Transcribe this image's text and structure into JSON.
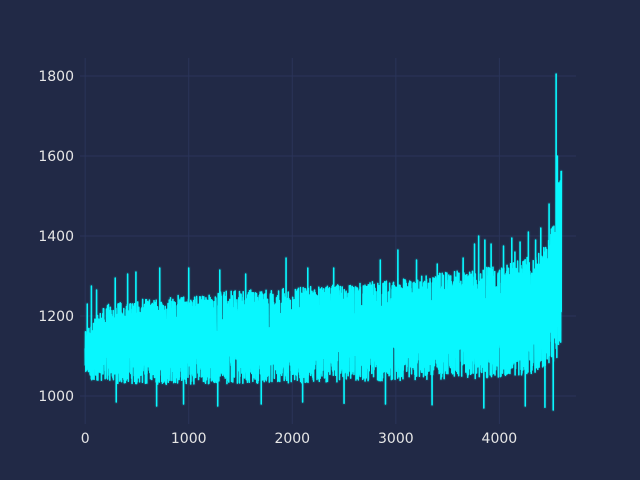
{
  "colors": {
    "background": "#212946",
    "grid": "#2A3459",
    "tick_text": "#E6E6E6",
    "series": "#08F7FE"
  },
  "chart_data": {
    "type": "line",
    "title": "",
    "xlabel": "",
    "ylabel": "",
    "xlim": [
      -50,
      4740
    ],
    "ylim": [
      930,
      1845
    ],
    "xticks": [
      0,
      1000,
      2000,
      3000,
      4000
    ],
    "yticks": [
      1000,
      1200,
      1400,
      1600,
      1800
    ],
    "grid": true,
    "legend": "none",
    "series": [
      {
        "n_points": 4600,
        "low_envelope": [
          [
            0,
            1020
          ],
          [
            300,
            995
          ],
          [
            800,
            990
          ],
          [
            1500,
            990
          ],
          [
            2500,
            992
          ],
          [
            3300,
            995
          ],
          [
            3800,
            995
          ],
          [
            4200,
            1000
          ],
          [
            4450,
            1010
          ],
          [
            4600,
            1030
          ]
        ],
        "high_envelope": [
          [
            0,
            1160
          ],
          [
            200,
            1230
          ],
          [
            800,
            1250
          ],
          [
            1500,
            1265
          ],
          [
            2000,
            1270
          ],
          [
            2500,
            1280
          ],
          [
            3000,
            1290
          ],
          [
            3500,
            1310
          ],
          [
            3800,
            1320
          ],
          [
            4100,
            1330
          ],
          [
            4300,
            1350
          ],
          [
            4450,
            1380
          ],
          [
            4520,
            1440
          ],
          [
            4560,
            1500
          ],
          [
            4600,
            1600
          ]
        ],
        "peaks": [
          [
            20,
            1230
          ],
          [
            60,
            1275
          ],
          [
            110,
            1265
          ],
          [
            290,
            1295
          ],
          [
            410,
            1305
          ],
          [
            490,
            1310
          ],
          [
            720,
            1320
          ],
          [
            1000,
            1320
          ],
          [
            1300,
            1315
          ],
          [
            1550,
            1305
          ],
          [
            1940,
            1345
          ],
          [
            2150,
            1320
          ],
          [
            2400,
            1320
          ],
          [
            2500,
            1330
          ],
          [
            2850,
            1340
          ],
          [
            3020,
            1365
          ],
          [
            3200,
            1340
          ],
          [
            3400,
            1330
          ],
          [
            3650,
            1345
          ],
          [
            3760,
            1380
          ],
          [
            3800,
            1400
          ],
          [
            3860,
            1390
          ],
          [
            3920,
            1380
          ],
          [
            4040,
            1375
          ],
          [
            4120,
            1395
          ],
          [
            4150,
            1360
          ],
          [
            4200,
            1385
          ],
          [
            4280,
            1410
          ],
          [
            4350,
            1390
          ],
          [
            4400,
            1420
          ],
          [
            4440,
            1450
          ],
          [
            4480,
            1480
          ],
          [
            4520,
            1550
          ],
          [
            4548,
            1805
          ],
          [
            4560,
            1600
          ]
        ],
        "dips": [
          [
            300,
            985
          ],
          [
            690,
            975
          ],
          [
            950,
            980
          ],
          [
            1280,
            975
          ],
          [
            1700,
            980
          ],
          [
            2100,
            985
          ],
          [
            2500,
            982
          ],
          [
            2900,
            980
          ],
          [
            3350,
            978
          ],
          [
            3850,
            970
          ],
          [
            4250,
            975
          ],
          [
            4440,
            972
          ],
          [
            4520,
            965
          ]
        ]
      }
    ]
  }
}
